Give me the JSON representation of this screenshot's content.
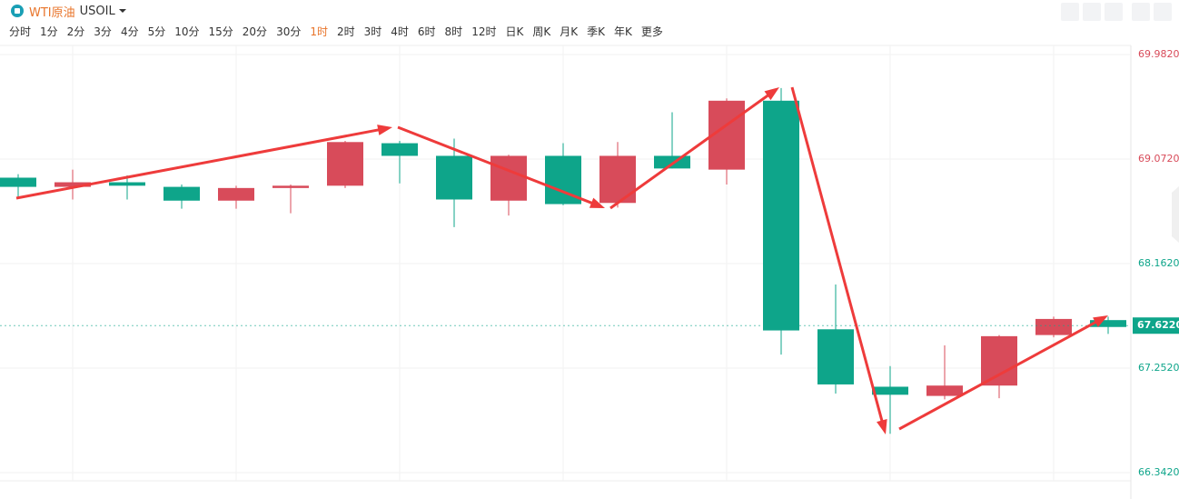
{
  "header": {
    "name": "WTI原油",
    "code": "USOIL"
  },
  "toolbar": {
    "items": [
      "分时",
      "1分",
      "2分",
      "3分",
      "4分",
      "5分",
      "10分",
      "15分",
      "20分",
      "30分",
      "1时",
      "2时",
      "3时",
      "4时",
      "6时",
      "8时",
      "12时",
      "日K",
      "周K",
      "月K",
      "季K",
      "年K",
      "更多"
    ],
    "selected": 10
  },
  "chart_data": {
    "type": "candlestick",
    "up_color": "#d84b5a",
    "down_color": "#0ea58a",
    "ylim": [
      66.342,
      69.982
    ],
    "yticks": [
      {
        "value": 69.982,
        "label": "69.9820"
      },
      {
        "value": 69.072,
        "label": "69.0720"
      },
      {
        "value": 68.162,
        "label": "68.1620"
      },
      {
        "value": 67.252,
        "label": "67.2520"
      },
      {
        "value": 66.342,
        "label": "66.3420"
      }
    ],
    "ytick_colors": [
      "#d84b5a",
      "#d84b5a",
      "#0ea58a",
      "#0ea58a",
      "#0ea58a"
    ],
    "grid": true,
    "last": {
      "value": 67.622,
      "label": "67.6220"
    },
    "candles": [
      {
        "open": 68.91,
        "high": 68.94,
        "low": 68.73,
        "close": 68.83
      },
      {
        "open": 68.83,
        "high": 68.98,
        "low": 68.72,
        "close": 68.87
      },
      {
        "open": 68.87,
        "high": 68.93,
        "low": 68.72,
        "close": 68.84
      },
      {
        "open": 68.83,
        "high": 68.85,
        "low": 68.64,
        "close": 68.71
      },
      {
        "open": 68.71,
        "high": 68.84,
        "low": 68.64,
        "close": 68.82
      },
      {
        "open": 68.82,
        "high": 68.85,
        "low": 68.6,
        "close": 68.84
      },
      {
        "open": 68.84,
        "high": 69.23,
        "low": 68.82,
        "close": 69.22
      },
      {
        "open": 69.21,
        "high": 69.23,
        "low": 68.86,
        "close": 69.1
      },
      {
        "open": 69.1,
        "high": 69.25,
        "low": 68.48,
        "close": 68.72
      },
      {
        "open": 68.71,
        "high": 69.11,
        "low": 68.58,
        "close": 69.1
      },
      {
        "open": 69.1,
        "high": 69.21,
        "low": 68.67,
        "close": 68.68
      },
      {
        "open": 68.69,
        "high": 69.22,
        "low": 68.65,
        "close": 69.1
      },
      {
        "open": 69.1,
        "high": 69.48,
        "low": 68.99,
        "close": 68.99
      },
      {
        "open": 68.98,
        "high": 69.6,
        "low": 68.85,
        "close": 69.58
      },
      {
        "open": 69.58,
        "high": 69.69,
        "low": 67.37,
        "close": 67.58
      },
      {
        "open": 67.59,
        "high": 67.98,
        "low": 67.03,
        "close": 67.11
      },
      {
        "open": 67.09,
        "high": 67.27,
        "low": 66.68,
        "close": 67.02
      },
      {
        "open": 67.01,
        "high": 67.45,
        "low": 66.98,
        "close": 67.1
      },
      {
        "open": 67.1,
        "high": 67.54,
        "low": 66.99,
        "close": 67.53
      },
      {
        "open": 67.54,
        "high": 67.7,
        "low": 67.52,
        "close": 67.68
      },
      {
        "open": 67.67,
        "high": 67.7,
        "low": 67.55,
        "close": 67.61
      }
    ]
  }
}
